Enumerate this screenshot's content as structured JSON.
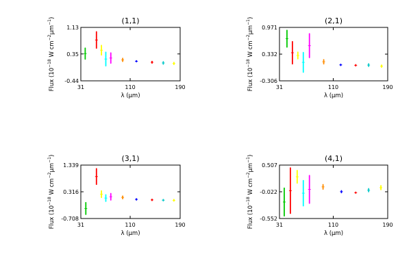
{
  "chart_data": [
    {
      "type": "scatter",
      "title": "(1,1)",
      "xlabel": "λ (μm)",
      "ylabel_prefix": "Flux (10",
      "ylabel_exp1": "−18",
      "ylabel_mid": " W cm",
      "ylabel_exp2": "−2",
      "ylabel_unit": "μm",
      "ylabel_exp3": "−1",
      "ylabel_suffix": ")",
      "xlim": [
        31,
        190
      ],
      "ylim": [
        -0.44,
        1.13
      ],
      "xticks": [
        31,
        110,
        190
      ],
      "yticks": [
        -0.44,
        0.35,
        1.13
      ],
      "xtick_labels": [
        "31",
        "110",
        "190"
      ],
      "ytick_labels": [
        "-0.44",
        "0.35",
        "1.13"
      ],
      "grid": false,
      "segments": [
        {
          "x": 38,
          "y1": 0.2,
          "y2": 0.52,
          "color": "#00c800"
        },
        {
          "x": 56,
          "y1": 0.52,
          "y2": 1.0,
          "color": "#ff0000"
        },
        {
          "x": 64,
          "y1": 0.32,
          "y2": 0.6,
          "color": "#ffff00"
        },
        {
          "x": 71,
          "y1": 0.0,
          "y2": 0.4,
          "color": "#00ffff"
        },
        {
          "x": 79,
          "y1": 0.08,
          "y2": 0.38,
          "color": "#ff00ff"
        },
        {
          "x": 98,
          "y1": 0.13,
          "y2": 0.22,
          "color": "#ff8c00"
        },
        {
          "x": 120,
          "y1": 0.12,
          "y2": 0.15,
          "color": "#0000ff"
        },
        {
          "x": 145,
          "y1": 0.08,
          "y2": 0.13,
          "color": "#ff0000"
        },
        {
          "x": 163,
          "y1": 0.05,
          "y2": 0.12,
          "color": "#00c8c8"
        },
        {
          "x": 180,
          "y1": 0.04,
          "y2": 0.1,
          "color": "#ffff00"
        }
      ]
    },
    {
      "type": "scatter",
      "title": "(2,1)",
      "xlabel": "λ (μm)",
      "ylabel_prefix": "Flux (10",
      "ylabel_exp1": "−18",
      "ylabel_mid": " W cm",
      "ylabel_exp2": "−2",
      "ylabel_unit": "μm",
      "ylabel_exp3": "−1",
      "ylabel_suffix": ")",
      "xlim": [
        31,
        190
      ],
      "ylim": [
        -0.306,
        0.971
      ],
      "xticks": [
        31,
        110,
        190
      ],
      "yticks": [
        -0.306,
        0.332,
        0.971
      ],
      "xtick_labels": [
        "31",
        "110",
        "190"
      ],
      "ytick_labels": [
        "-0.306",
        "0.332",
        "0.971"
      ],
      "grid": false,
      "segments": [
        {
          "x": 42,
          "y1": 0.5,
          "y2": 0.9,
          "color": "#00c800"
        },
        {
          "x": 50,
          "y1": 0.1,
          "y2": 0.63,
          "color": "#ff0000"
        },
        {
          "x": 58,
          "y1": 0.22,
          "y2": 0.38,
          "color": "#ffff00"
        },
        {
          "x": 66,
          "y1": -0.1,
          "y2": 0.37,
          "color": "#00ffff"
        },
        {
          "x": 75,
          "y1": 0.25,
          "y2": 0.82,
          "color": "#ff00ff"
        },
        {
          "x": 96,
          "y1": 0.1,
          "y2": 0.2,
          "color": "#ff8c00"
        },
        {
          "x": 121,
          "y1": 0.06,
          "y2": 0.09,
          "color": "#0000ff"
        },
        {
          "x": 143,
          "y1": 0.05,
          "y2": 0.08,
          "color": "#ff0000"
        },
        {
          "x": 162,
          "y1": 0.04,
          "y2": 0.1,
          "color": "#00c8c8"
        },
        {
          "x": 181,
          "y1": 0.02,
          "y2": 0.07,
          "color": "#ffff00"
        }
      ]
    },
    {
      "type": "scatter",
      "title": "(3,1)",
      "xlabel": "λ (μm)",
      "ylabel_prefix": "Flux (10",
      "ylabel_exp1": "−18",
      "ylabel_mid": " W cm",
      "ylabel_exp2": "−2",
      "ylabel_unit": "μm",
      "ylabel_exp3": "−1",
      "ylabel_suffix": ")",
      "xlim": [
        31,
        190
      ],
      "ylim": [
        -0.708,
        1.339
      ],
      "xticks": [
        31,
        110,
        190
      ],
      "yticks": [
        -0.708,
        0.316,
        1.339
      ],
      "xtick_labels": [
        "31",
        "110",
        "190"
      ],
      "ytick_labels": [
        "-0.708",
        "0.316",
        "1.339"
      ],
      "grid": false,
      "segments": [
        {
          "x": 39,
          "y1": -0.55,
          "y2": -0.1,
          "color": "#00c800"
        },
        {
          "x": 56,
          "y1": 0.6,
          "y2": 1.2,
          "color": "#ff0000"
        },
        {
          "x": 64,
          "y1": 0.1,
          "y2": 0.35,
          "color": "#ffff00"
        },
        {
          "x": 71,
          "y1": -0.05,
          "y2": 0.2,
          "color": "#00ffff"
        },
        {
          "x": 79,
          "y1": 0.0,
          "y2": 0.25,
          "color": "#ff00ff"
        },
        {
          "x": 98,
          "y1": 0.05,
          "y2": 0.15,
          "color": "#ff8c00"
        },
        {
          "x": 120,
          "y1": 0.0,
          "y2": 0.05,
          "color": "#0000ff"
        },
        {
          "x": 145,
          "y1": -0.02,
          "y2": 0.03,
          "color": "#ff0000"
        },
        {
          "x": 163,
          "y1": -0.03,
          "y2": 0.02,
          "color": "#00c8c8"
        },
        {
          "x": 180,
          "y1": -0.04,
          "y2": 0.02,
          "color": "#ffff00"
        }
      ]
    },
    {
      "type": "scatter",
      "title": "(4,1)",
      "xlabel": "λ (μm)",
      "ylabel_prefix": "Flux (10",
      "ylabel_exp1": "−18",
      "ylabel_mid": " W cm",
      "ylabel_exp2": "−2",
      "ylabel_unit": "μm",
      "ylabel_exp3": "−1",
      "ylabel_suffix": ")",
      "xlim": [
        31,
        190
      ],
      "ylim": [
        -0.552,
        0.507
      ],
      "xticks": [
        31,
        110,
        190
      ],
      "yticks": [
        -0.552,
        -0.022,
        0.507
      ],
      "xtick_labels": [
        "31",
        "110",
        "190"
      ],
      "ytick_labels": [
        "-0.552",
        "-0.022",
        "0.507"
      ],
      "grid": false,
      "segments": [
        {
          "x": 38,
          "y1": -0.5,
          "y2": 0.05,
          "color": "#00c800"
        },
        {
          "x": 47,
          "y1": -0.45,
          "y2": 0.45,
          "color": "#ff0000"
        },
        {
          "x": 57,
          "y1": 0.15,
          "y2": 0.4,
          "color": "#ffff00"
        },
        {
          "x": 66,
          "y1": -0.3,
          "y2": 0.2,
          "color": "#00ffff"
        },
        {
          "x": 75,
          "y1": -0.25,
          "y2": 0.3,
          "color": "#ff00ff"
        },
        {
          "x": 95,
          "y1": 0.03,
          "y2": 0.12,
          "color": "#ff8c00"
        },
        {
          "x": 122,
          "y1": -0.04,
          "y2": 0.0,
          "color": "#0000ff"
        },
        {
          "x": 143,
          "y1": -0.05,
          "y2": -0.03,
          "color": "#ff0000"
        },
        {
          "x": 162,
          "y1": -0.02,
          "y2": 0.04,
          "color": "#00c8c8"
        },
        {
          "x": 180,
          "y1": 0.02,
          "y2": 0.1,
          "color": "#ffff00"
        }
      ]
    }
  ]
}
